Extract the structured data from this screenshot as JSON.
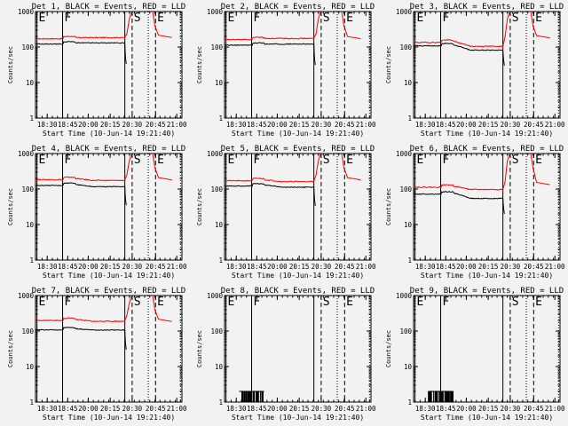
{
  "chart_data": {
    "type": "line",
    "y_scale": "log",
    "ylim": [
      1,
      1000
    ],
    "y_ticks": [
      "1",
      "10",
      "100",
      "1000"
    ],
    "x_ticks": [
      "18:30",
      "18:45",
      "20:00",
      "20:15",
      "20:30",
      "20:45",
      "21:00"
    ],
    "xlabel": "Start Time (10-Jun-14 19:21:40)",
    "ylabel": "Counts/sec",
    "markers": [
      "E",
      "F",
      "S",
      "E"
    ],
    "panels": [
      {
        "title": "Det 1, BLACK = Events, RED = LLD",
        "mode": "rate",
        "red": {
          "base": 190,
          "drop": 0,
          "tail": 195
        },
        "black": {
          "base": 135,
          "drop": 0
        }
      },
      {
        "title": "Det 2, BLACK = Events, RED = LLD",
        "mode": "rate",
        "red": {
          "base": 180,
          "drop": 0,
          "tail": 180
        },
        "black": {
          "base": 125,
          "drop": 0
        }
      },
      {
        "title": "Det 3, BLACK = Events, RED = LLD",
        "mode": "rate",
        "red": {
          "base": 150,
          "drop": 0.28,
          "tail": 190
        },
        "black": {
          "base": 120,
          "drop": 0.3
        }
      },
      {
        "title": "Det 4, BLACK = Events, RED = LLD",
        "mode": "rate",
        "red": {
          "base": 205,
          "drop": 0.12,
          "tail": 190
        },
        "black": {
          "base": 140,
          "drop": 0.14
        }
      },
      {
        "title": "Det 5, BLACK = Events, RED = LLD",
        "mode": "rate",
        "red": {
          "base": 190,
          "drop": 0.12,
          "tail": 190
        },
        "black": {
          "base": 135,
          "drop": 0.14
        }
      },
      {
        "title": "Det 6, BLACK = Events, RED = LLD",
        "mode": "rate",
        "red": {
          "base": 125,
          "drop": 0.2,
          "tail": 140
        },
        "black": {
          "base": 80,
          "drop": 0.3
        }
      },
      {
        "title": "Det 7, BLACK = Events, RED = LLD",
        "mode": "rate",
        "red": {
          "base": 220,
          "drop": 0.12,
          "tail": 195
        },
        "black": {
          "base": 120,
          "drop": 0.08
        }
      },
      {
        "title": "Det 8, BLACK = Events, RED = LLD",
        "mode": "spikes",
        "spike_value": 2,
        "spike_count": 44
      },
      {
        "title": "Det 9, BLACK = Events, RED = LLD",
        "mode": "spikes",
        "spike_value": 2,
        "spike_count": 38
      }
    ]
  }
}
